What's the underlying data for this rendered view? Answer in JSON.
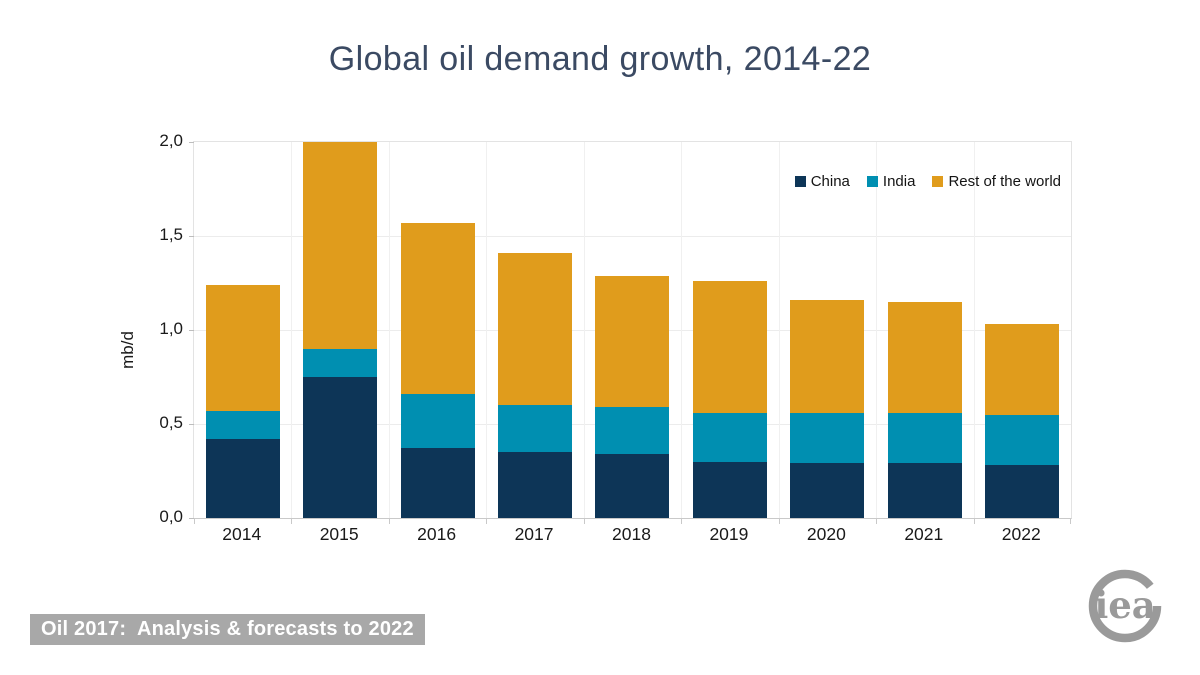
{
  "chart_data": {
    "type": "bar",
    "stacked": true,
    "title": "Global oil demand growth, 2014-22",
    "ylabel": "mb/d",
    "xlabel": "",
    "categories": [
      "2014",
      "2015",
      "2016",
      "2017",
      "2018",
      "2019",
      "2020",
      "2021",
      "2022"
    ],
    "series": [
      {
        "name": "China",
        "color": "#0d3557",
        "values": [
          0.42,
          0.75,
          0.37,
          0.35,
          0.34,
          0.3,
          0.29,
          0.29,
          0.28
        ]
      },
      {
        "name": "India",
        "color": "#008fb1",
        "values": [
          0.15,
          0.15,
          0.29,
          0.25,
          0.25,
          0.26,
          0.27,
          0.27,
          0.27
        ]
      },
      {
        "name": "Rest of the world",
        "color": "#e09c1c",
        "values": [
          0.67,
          1.1,
          0.91,
          0.81,
          0.7,
          0.7,
          0.6,
          0.59,
          0.48
        ]
      }
    ],
    "totals": [
      1.24,
      2.0,
      1.57,
      1.41,
      1.29,
      1.26,
      1.16,
      1.15,
      1.03
    ],
    "ylim": [
      0,
      2.0
    ],
    "ytick_values": [
      0,
      0.5,
      1,
      1.5,
      2
    ],
    "ytick_labels": [
      "0,0",
      "0,5",
      "1,0",
      "1,5",
      "2,0"
    ],
    "grid": true,
    "legend_position": "top-right"
  },
  "footer": {
    "label": "Oil 2017:  Analysis & forecasts to 2022"
  },
  "logo": {
    "text": "iea",
    "color": "#9a9a9a"
  }
}
